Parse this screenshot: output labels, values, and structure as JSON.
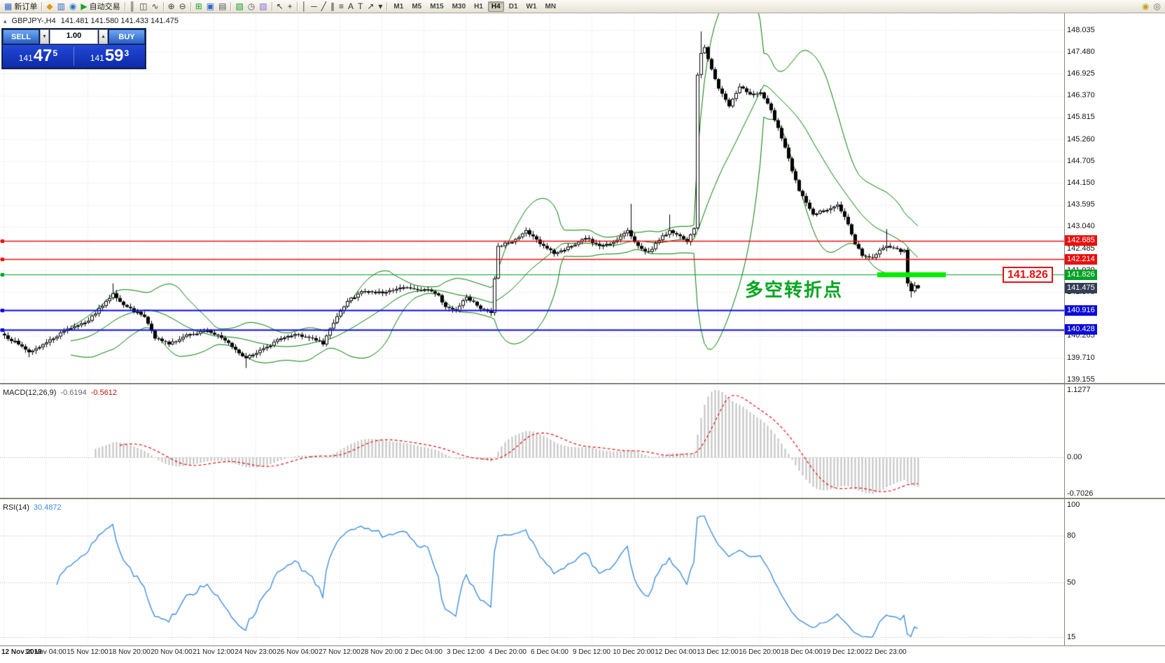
{
  "toolbar": {
    "groups": [
      {
        "items": [
          {
            "name": "new-order-button",
            "glyph": "▦",
            "color": "#2e66c8",
            "label": "新订单"
          }
        ]
      },
      {
        "items": [
          {
            "name": "metaeditor-icon",
            "glyph": "◆",
            "color": "#d89a18"
          },
          {
            "name": "market-watch-icon",
            "glyph": "▥",
            "color": "#2e66c8"
          },
          {
            "name": "navigator-icon",
            "glyph": "◉",
            "color": "#2878c8"
          },
          {
            "name": "autotrading-button",
            "glyph": "▶",
            "color": "#1ca032",
            "label": "自动交易"
          }
        ]
      },
      {
        "items": [
          {
            "name": "bar-chart-icon",
            "glyph": "║",
            "color": "#444"
          },
          {
            "name": "candlestick-chart-icon",
            "glyph": "◫",
            "color": "#444"
          },
          {
            "name": "line-chart-icon",
            "glyph": "∿",
            "color": "#444"
          }
        ]
      },
      {
        "items": [
          {
            "name": "zoom-in-icon",
            "glyph": "⊕",
            "color": "#444"
          },
          {
            "name": "zoom-out-icon",
            "glyph": "⊖",
            "color": "#444"
          }
        ]
      },
      {
        "items": [
          {
            "name": "tile-windows-icon",
            "glyph": "⊞",
            "color": "#1ca032"
          },
          {
            "name": "auto-arrange-icon",
            "glyph": "▣",
            "color": "#2e66c8"
          },
          {
            "name": "chart-shift-icon",
            "glyph": "▤",
            "color": "#555"
          }
        ]
      },
      {
        "items": [
          {
            "name": "new-chart-icon",
            "glyph": "▧",
            "color": "#1ca032"
          },
          {
            "name": "profiles-icon",
            "glyph": "◷",
            "color": "#555"
          },
          {
            "name": "templates-icon",
            "glyph": "▨",
            "color": "#8a6ad0"
          }
        ]
      },
      {
        "items": [
          {
            "name": "cursor-icon",
            "glyph": "↖",
            "color": "#333"
          },
          {
            "name": "crosshair-icon",
            "glyph": "+",
            "color": "#333"
          }
        ]
      },
      {
        "items": [
          {
            "name": "vertical-line-icon",
            "glyph": "│",
            "color": "#333"
          },
          {
            "name": "horizontal-line-icon",
            "glyph": "─",
            "color": "#333"
          },
          {
            "name": "trendline-icon",
            "glyph": "╱",
            "color": "#333"
          },
          {
            "name": "channel-icon",
            "glyph": "∥",
            "color": "#333"
          },
          {
            "name": "fibonacci-icon",
            "glyph": "≡",
            "color": "#333"
          },
          {
            "name": "text-icon",
            "glyph": "A",
            "color": "#333"
          },
          {
            "name": "label-icon",
            "glyph": "T",
            "color": "#333"
          },
          {
            "name": "arrows-icon",
            "glyph": "↗",
            "color": "#333"
          },
          {
            "name": "objects-dropdown-icon",
            "glyph": "▾",
            "color": "#333"
          }
        ]
      }
    ],
    "timeframes": {
      "items": [
        "M1",
        "M5",
        "M15",
        "M30",
        "H1",
        "H4",
        "D1",
        "W1",
        "MN"
      ],
      "active": "H4"
    },
    "right_icons": [
      {
        "name": "community-icon",
        "glyph": "◉",
        "color": "#c8a020"
      },
      {
        "name": "search-icon",
        "glyph": "◎",
        "color": "#666"
      }
    ]
  },
  "chart": {
    "header": {
      "toggle_icon": "▴",
      "title": "GBPJPY-,H4",
      "ohlc": "141.481 141.580 141.433 141.475"
    },
    "trade_panel": {
      "sell_label": "SELL",
      "buy_label": "BUY",
      "volume": "1.00",
      "vol_down_icon": "▼",
      "vol_up_icon": "▲",
      "sell_price": {
        "head": "141",
        "big": "47",
        "sup": "5"
      },
      "buy_price": {
        "head": "141",
        "big": "59",
        "sup": "3"
      }
    },
    "annotation": {
      "text": "多空转折点"
    },
    "callout": {
      "text": "141.826"
    },
    "levels": [
      {
        "label": "142.685",
        "price": 142.685,
        "color_key": "level_red",
        "line_width": 1.6
      },
      {
        "label": "142.214",
        "price": 142.214,
        "color_key": "level_red",
        "line_width": 1.6
      },
      {
        "label": "141.826",
        "price": 141.826,
        "color_key": "level_green",
        "line_width": 1.2
      },
      {
        "label": "140.916",
        "price": 140.916,
        "color_key": "level_blue",
        "line_width": 2
      },
      {
        "label": "140.428",
        "price": 140.428,
        "color_key": "level_blue",
        "line_width": 2
      }
    ],
    "current": {
      "label": "141.475",
      "price": 141.475
    },
    "y_axis_ticks": [
      "148.035",
      "147.480",
      "146.925",
      "146.370",
      "145.815",
      "145.260",
      "144.705",
      "144.150",
      "143.595",
      "143.040",
      "142.485",
      "141.930",
      "141.375",
      "140.820",
      "140.265",
      "139.710",
      "139.155"
    ],
    "x_axis_labels": [
      "12 Nov 2019",
      "14 Nov 04:00",
      "15 Nov 12:00",
      "18 Nov 20:00",
      "20 Nov 04:00",
      "21 Nov 12:00",
      "24 Nov 23:00",
      "26 Nov 04:00",
      "27 Nov 12:00",
      "28 Nov 20:00",
      "2 Dec 04:00",
      "3 Dec 12:00",
      "4 Dec 20:00",
      "6 Dec 04:00",
      "9 Dec 12:00",
      "10 Dec 20:00",
      "12 Dec 04:00",
      "13 Dec 12:00",
      "16 Dec 20:00",
      "18 Dec 04:00",
      "19 Dec 12:00",
      "22 Dec 23:00"
    ],
    "chart_data": {
      "type": "candlestick",
      "symbol": "GBPJPY-",
      "timeframe": "H4",
      "bars": 262,
      "close_waypoints": [
        [
          0,
          140.28
        ],
        [
          4,
          140.05
        ],
        [
          7,
          139.85
        ],
        [
          12,
          140.1
        ],
        [
          18,
          140.45
        ],
        [
          24,
          140.65
        ],
        [
          29,
          141.15
        ],
        [
          31,
          141.35
        ],
        [
          34,
          141.05
        ],
        [
          40,
          140.75
        ],
        [
          43,
          140.2
        ],
        [
          47,
          140.05
        ],
        [
          52,
          140.3
        ],
        [
          58,
          140.4
        ],
        [
          63,
          140.15
        ],
        [
          69,
          139.7
        ],
        [
          74,
          139.95
        ],
        [
          79,
          140.2
        ],
        [
          84,
          140.3
        ],
        [
          89,
          140.15
        ],
        [
          91,
          140.05
        ],
        [
          93,
          140.45
        ],
        [
          98,
          141.15
        ],
        [
          102,
          141.4
        ],
        [
          108,
          141.35
        ],
        [
          114,
          141.5
        ],
        [
          120,
          141.45
        ],
        [
          124,
          141.3
        ],
        [
          126,
          141.0
        ],
        [
          129,
          140.9
        ],
        [
          132,
          141.25
        ],
        [
          136,
          140.95
        ],
        [
          139,
          140.85
        ],
        [
          141,
          142.55
        ],
        [
          145,
          142.65
        ],
        [
          149,
          142.95
        ],
        [
          153,
          142.6
        ],
        [
          157,
          142.35
        ],
        [
          160,
          142.45
        ],
        [
          166,
          142.75
        ],
        [
          170,
          142.55
        ],
        [
          174,
          142.65
        ],
        [
          178,
          142.95
        ],
        [
          181,
          142.55
        ],
        [
          184,
          142.4
        ],
        [
          187,
          142.7
        ],
        [
          190,
          142.95
        ],
        [
          193,
          142.8
        ],
        [
          195,
          142.65
        ],
        [
          197,
          143.0
        ],
        [
          198,
          146.9
        ],
        [
          199,
          147.45
        ],
        [
          200,
          147.6
        ],
        [
          201,
          147.3
        ],
        [
          204,
          146.55
        ],
        [
          207,
          146.1
        ],
        [
          210,
          146.6
        ],
        [
          213,
          146.4
        ],
        [
          216,
          146.45
        ],
        [
          219,
          146.0
        ],
        [
          221,
          145.55
        ],
        [
          223,
          145.05
        ],
        [
          225,
          144.45
        ],
        [
          227,
          143.95
        ],
        [
          229,
          143.65
        ],
        [
          231,
          143.35
        ],
        [
          234,
          143.45
        ],
        [
          237,
          143.55
        ],
        [
          238,
          143.6
        ],
        [
          241,
          143.1
        ],
        [
          243,
          142.6
        ],
        [
          245,
          142.3
        ],
        [
          248,
          142.25
        ],
        [
          250,
          142.45
        ],
        [
          252,
          142.55
        ],
        [
          254,
          142.5
        ],
        [
          256,
          142.4
        ],
        [
          257,
          142.45
        ],
        [
          258,
          141.6
        ],
        [
          259,
          141.4
        ],
        [
          260,
          141.55
        ],
        [
          261,
          141.48
        ]
      ],
      "wick_highs": {
        "31": 141.6,
        "179": 143.62,
        "190": 143.35,
        "199": 148.0,
        "252": 142.98
      },
      "wick_lows": {
        "7": 139.72,
        "69": 139.45,
        "259": 141.24
      },
      "current_bar": {
        "open": 141.481,
        "high": 141.58,
        "low": 141.433,
        "close": 141.475
      },
      "overlays": {
        "bollinger_period": 20,
        "bollinger_deviation": 2
      },
      "horizontal_levels": [
        142.685,
        142.214,
        141.826,
        140.916,
        140.428
      ]
    }
  },
  "macd_panel": {
    "name": "MACD(12,26,9)",
    "main_value": "-0.6194",
    "signal_value": "-0.5612",
    "axis_labels": [
      "1.1277",
      "0.00",
      "-0.7026"
    ]
  },
  "rsi_panel": {
    "name": "RSI(14)",
    "value": "30.4872",
    "axis_labels": [
      "100",
      "80",
      "50",
      "15"
    ]
  },
  "colors": {
    "level_red": "#e81010",
    "level_green": "#00a226",
    "level_blue": "#0b0bdc",
    "current_price_badge": "#333f54",
    "highlight_green": "#00ef00",
    "annotation_green": "#00a51e",
    "bollinger": "#007c00",
    "macd_histogram": "#c0c0c0",
    "macd_signal": "#e01010",
    "rsi_line": "#3e8ede",
    "up_candle": "#ffffff",
    "down_candle": "#000000"
  }
}
